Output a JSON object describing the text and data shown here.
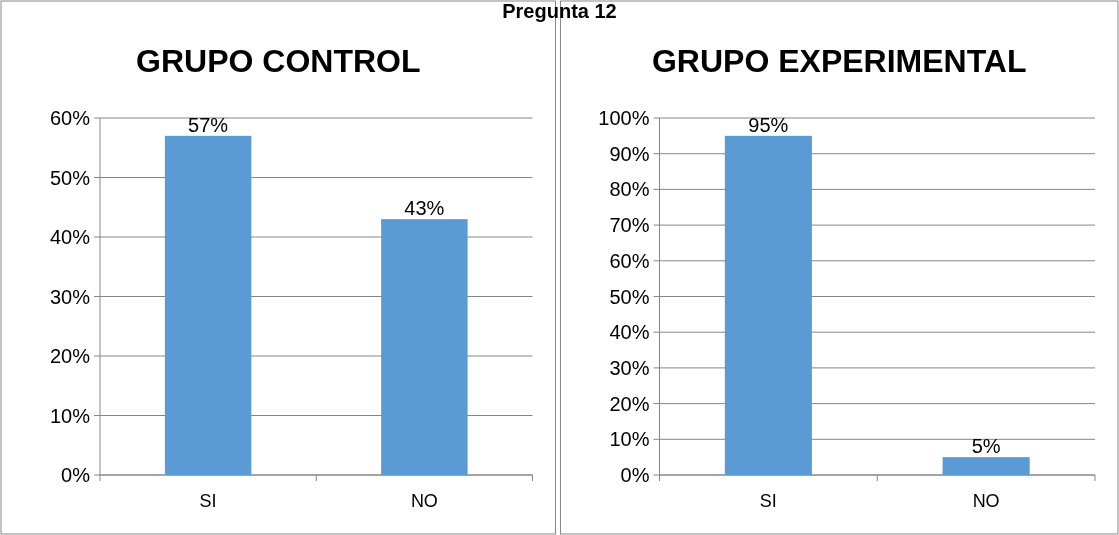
{
  "chart_data": [
    {
      "type": "bar",
      "title": "GRUPO CONTROL",
      "annotations": [
        "Pregunta 12"
      ],
      "categories": [
        "SI",
        "NO"
      ],
      "values": [
        57,
        43
      ],
      "color": "#5b9bd5",
      "value_labels": [
        "57%",
        "43%"
      ],
      "ylim": [
        0,
        60
      ],
      "yticks": [
        {
          "value": 0,
          "label": "0%"
        },
        {
          "value": 10,
          "label": "10%"
        },
        {
          "value": 20,
          "label": "20%"
        },
        {
          "value": 30,
          "label": "30%"
        },
        {
          "value": 40,
          "label": "40%"
        },
        {
          "value": 50,
          "label": "50%"
        },
        {
          "value": 60,
          "label": "60%"
        }
      ],
      "grid": "y"
    },
    {
      "type": "bar",
      "title": "GRUPO EXPERIMENTAL",
      "categories": [
        "SI",
        "NO"
      ],
      "values": [
        95,
        5
      ],
      "color": "#5b9bd5",
      "value_labels": [
        "95%",
        "5%"
      ],
      "ylim": [
        0,
        100
      ],
      "yticks": [
        {
          "value": 0,
          "label": "0%"
        },
        {
          "value": 10,
          "label": "10%"
        },
        {
          "value": 20,
          "label": "20%"
        },
        {
          "value": 30,
          "label": "30%"
        },
        {
          "value": 40,
          "label": "40%"
        },
        {
          "value": 50,
          "label": "50%"
        },
        {
          "value": 60,
          "label": "60%"
        },
        {
          "value": 70,
          "label": "70%"
        },
        {
          "value": 80,
          "label": "80%"
        },
        {
          "value": 90,
          "label": "90%"
        },
        {
          "value": 100,
          "label": "100%"
        }
      ],
      "grid": "y"
    }
  ]
}
